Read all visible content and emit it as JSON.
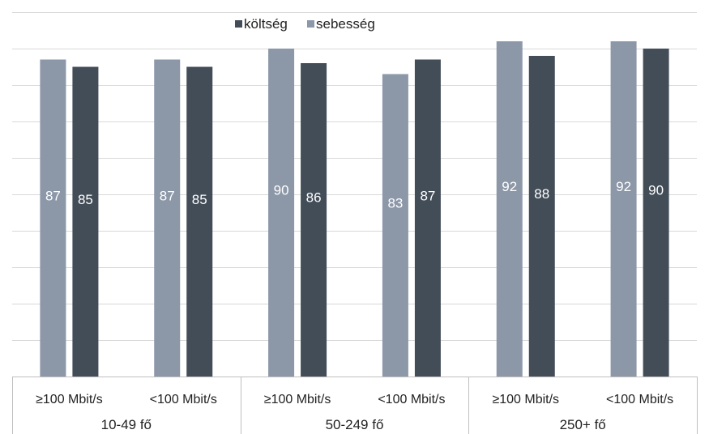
{
  "chart_data": {
    "type": "bar",
    "legend": [
      {
        "name": "költség",
        "color": "#434d58"
      },
      {
        "name": "sebesség",
        "color": "#8c97a8"
      }
    ],
    "legend_position": "top-center",
    "grid": true,
    "ylim": [
      0,
      100
    ],
    "groups": [
      "10-49 fő",
      "50-249 fő",
      "250+ fő"
    ],
    "categories": [
      {
        "label": "≥100 Mbit/s",
        "group": 0
      },
      {
        "label": "<100 Mbit/s",
        "group": 0
      },
      {
        "label": "≥100 Mbit/s",
        "group": 1
      },
      {
        "label": "<100 Mbit/s",
        "group": 1
      },
      {
        "label": "≥100 Mbit/s",
        "group": 2
      },
      {
        "label": "<100 Mbit/s",
        "group": 2
      }
    ],
    "series": [
      {
        "name": "sebesség",
        "color": "#8c97a8",
        "values": [
          87,
          87,
          90,
          83,
          92,
          92
        ]
      },
      {
        "name": "költség",
        "color": "#434d58",
        "values": [
          85,
          85,
          86,
          87,
          88,
          90
        ]
      }
    ]
  }
}
